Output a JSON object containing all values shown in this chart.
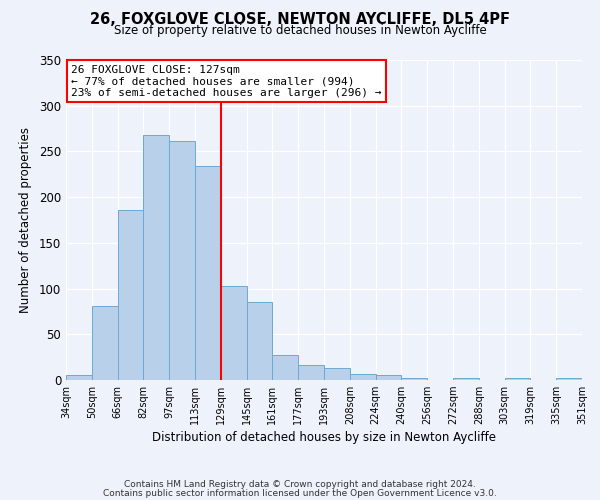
{
  "title": "26, FOXGLOVE CLOSE, NEWTON AYCLIFFE, DL5 4PF",
  "subtitle": "Size of property relative to detached houses in Newton Aycliffe",
  "xlabel": "Distribution of detached houses by size in Newton Aycliffe",
  "ylabel": "Number of detached properties",
  "bin_labels": [
    "34sqm",
    "50sqm",
    "66sqm",
    "82sqm",
    "97sqm",
    "113sqm",
    "129sqm",
    "145sqm",
    "161sqm",
    "177sqm",
    "193sqm",
    "208sqm",
    "224sqm",
    "240sqm",
    "256sqm",
    "272sqm",
    "288sqm",
    "303sqm",
    "319sqm",
    "335sqm",
    "351sqm"
  ],
  "bar_values": [
    6,
    81,
    186,
    268,
    261,
    234,
    103,
    85,
    27,
    16,
    13,
    7,
    5,
    2,
    0,
    2,
    0,
    2,
    0,
    2
  ],
  "bar_color": "#b8d0ea",
  "bar_edge_color": "#6aaad4",
  "vline_label_idx": 6,
  "vline_color": "red",
  "annotation_title": "26 FOXGLOVE CLOSE: 127sqm",
  "annotation_line1": "← 77% of detached houses are smaller (994)",
  "annotation_line2": "23% of semi-detached houses are larger (296) →",
  "annotation_box_color": "white",
  "annotation_box_edge": "red",
  "ylim": [
    0,
    350
  ],
  "yticks": [
    0,
    50,
    100,
    150,
    200,
    250,
    300,
    350
  ],
  "footnote1": "Contains HM Land Registry data © Crown copyright and database right 2024.",
  "footnote2": "Contains public sector information licensed under the Open Government Licence v3.0.",
  "background_color": "#eef2fb",
  "plot_background": "#eef2fb"
}
